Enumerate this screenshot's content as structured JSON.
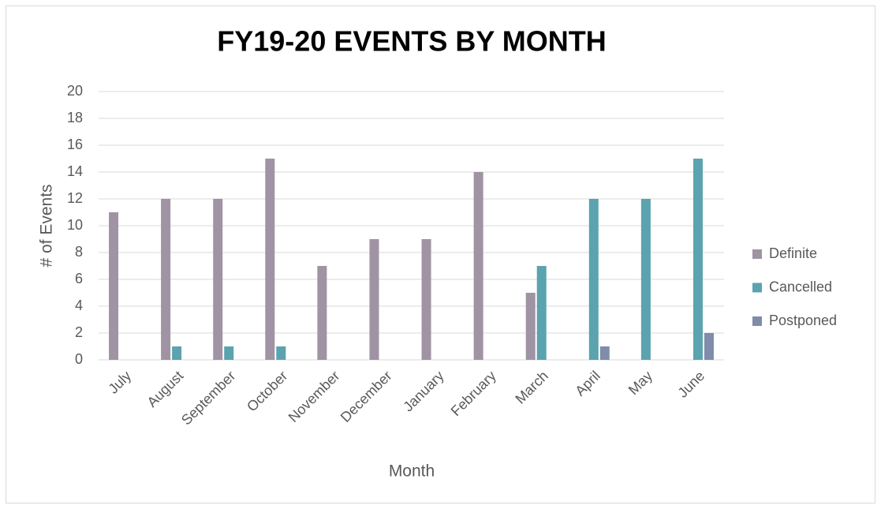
{
  "chart_data": {
    "type": "bar",
    "title": "FY19-20 EVENTS BY MONTH",
    "x_label": "Month",
    "y_label": "# of Events",
    "categories": [
      "July",
      "August",
      "September",
      "October",
      "November",
      "December",
      "January",
      "February",
      "March",
      "April",
      "May",
      "June"
    ],
    "series": [
      {
        "name": "Definite",
        "color": "#a093a3",
        "values": [
          11,
          12,
          12,
          15,
          7,
          9,
          9,
          14,
          5,
          0,
          0,
          0
        ]
      },
      {
        "name": "Cancelled",
        "color": "#5ba3ae",
        "values": [
          0,
          1,
          1,
          1,
          0,
          0,
          0,
          0,
          7,
          12,
          12,
          15
        ]
      },
      {
        "name": "Postponed",
        "color": "#7f8caa",
        "values": [
          0,
          0,
          0,
          0,
          0,
          0,
          0,
          0,
          0,
          1,
          0,
          2
        ]
      }
    ],
    "ylim": [
      0,
      20
    ],
    "yticks": [
      0,
      2,
      4,
      6,
      8,
      10,
      12,
      14,
      16,
      18,
      20
    ],
    "grid": true,
    "legend": "right"
  }
}
